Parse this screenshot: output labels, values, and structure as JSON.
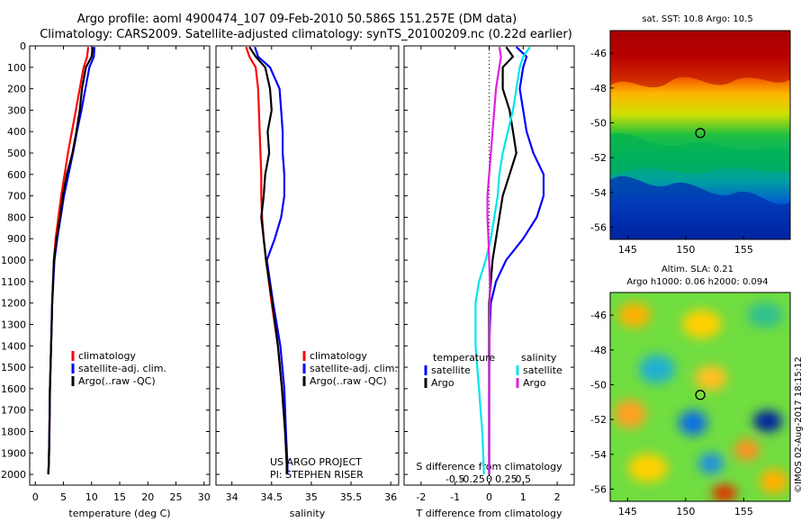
{
  "header": {
    "line1": "Argo profile: aoml 4900474_107 09-Feb-2010 50.586S 151.257E (DM data)",
    "line2": "Climatology: CARS2009. Satellite-adjusted climatology: synTS_20100209.nc (0.22d earlier)"
  },
  "colors": {
    "climatology": "#ff0000",
    "satellite": "#0000ff",
    "argo": "#000000",
    "t_sat": "#0000ff",
    "t_argo": "#000000",
    "s_sat": "#00e5ee",
    "s_argo": "#dd22dd"
  },
  "depth_ticks": [
    "0",
    "100",
    "200",
    "300",
    "400",
    "500",
    "600",
    "700",
    "800",
    "900",
    "1000",
    "1100",
    "1200",
    "1300",
    "1400",
    "1500",
    "1600",
    "1700",
    "1800",
    "1900",
    "2000"
  ],
  "chart_data": [
    {
      "type": "line",
      "name": "temperature",
      "xlabel": "temperature (deg C)",
      "xlim": [
        -1,
        31
      ],
      "ylim": [
        2050,
        0
      ],
      "xticks": [
        "0",
        "5",
        "10",
        "15",
        "20",
        "25",
        "30"
      ],
      "legend": [
        "climatology",
        "satellite-adj. clim.",
        "Argo(..raw -QC)"
      ],
      "series": [
        {
          "name": "climatology",
          "color": "#ff0000",
          "depth": [
            5,
            50,
            100,
            200,
            300,
            400,
            500,
            600,
            700,
            800,
            900,
            1000,
            1200,
            1400,
            1600,
            1800,
            1950,
            2000
          ],
          "values": [
            9.4,
            9.2,
            8.6,
            7.9,
            7.2,
            6.5,
            5.8,
            5.2,
            4.6,
            4.1,
            3.6,
            3.3,
            3.0,
            2.8,
            2.6,
            2.5,
            2.4,
            2.3
          ]
        },
        {
          "name": "satellite-adj. clim.",
          "color": "#0000ff",
          "depth": [
            5,
            50,
            100,
            200,
            300,
            400,
            500,
            600,
            700,
            800,
            900,
            1000,
            1200,
            1400,
            1600,
            1800,
            1950,
            2000
          ],
          "values": [
            10.5,
            10.4,
            9.6,
            8.9,
            8.2,
            7.4,
            6.7,
            5.9,
            5.1,
            4.5,
            3.9,
            3.4,
            3.0,
            2.8,
            2.6,
            2.5,
            2.4,
            2.3
          ]
        },
        {
          "name": "Argo(..raw -QC)",
          "color": "#000000",
          "depth": [
            5,
            50,
            100,
            200,
            300,
            400,
            500,
            600,
            700,
            800,
            900,
            1000,
            1200,
            1400,
            1600,
            1800,
            1950,
            2000
          ],
          "values": [
            10.2,
            10.0,
            9.0,
            8.3,
            7.9,
            7.3,
            6.6,
            5.6,
            4.9,
            4.4,
            3.8,
            3.3,
            3.0,
            2.8,
            2.6,
            2.5,
            2.4,
            2.3
          ]
        }
      ]
    },
    {
      "type": "line",
      "name": "salinity",
      "xlabel": "salinity",
      "xlim": [
        33.8,
        36.1
      ],
      "ylim": [
        2050,
        0
      ],
      "xticks": [
        "34",
        "34.5",
        "35",
        "35.5",
        "36"
      ],
      "legend": [
        "climatology",
        "satellite-adj. clim.",
        "Argo(..raw -QC)"
      ],
      "annotation": [
        "US ARGO PROJECT",
        "PI: STEPHEN RISER"
      ],
      "series": [
        {
          "name": "climatology",
          "color": "#ff0000",
          "depth": [
            5,
            50,
            100,
            200,
            300,
            400,
            500,
            600,
            700,
            800,
            900,
            1000,
            1200,
            1400,
            1600,
            1800,
            1950,
            2000
          ],
          "values": [
            34.18,
            34.22,
            34.3,
            34.33,
            34.34,
            34.35,
            34.36,
            34.37,
            34.37,
            34.38,
            34.4,
            34.43,
            34.5,
            34.58,
            34.63,
            34.67,
            34.69,
            34.7
          ]
        },
        {
          "name": "satellite-adj. clim.",
          "color": "#0000ff",
          "depth": [
            5,
            50,
            100,
            200,
            300,
            400,
            500,
            600,
            700,
            800,
            900,
            1000,
            1200,
            1400,
            1600,
            1800,
            1950,
            2000
          ],
          "values": [
            34.29,
            34.33,
            34.48,
            34.6,
            34.62,
            34.64,
            34.64,
            34.66,
            34.66,
            34.62,
            34.54,
            34.44,
            34.52,
            34.61,
            34.66,
            34.68,
            34.7,
            34.7
          ]
        },
        {
          "name": "Argo(..raw -QC)",
          "color": "#000000",
          "depth": [
            5,
            50,
            100,
            200,
            300,
            400,
            500,
            600,
            700,
            800,
            900,
            1000,
            1200,
            1400,
            1600,
            1800,
            1950,
            2000
          ],
          "values": [
            34.22,
            34.3,
            34.42,
            34.48,
            34.5,
            34.45,
            34.47,
            34.42,
            34.4,
            34.37,
            34.4,
            34.43,
            34.51,
            34.58,
            34.63,
            34.67,
            34.69,
            34.69
          ]
        }
      ]
    },
    {
      "type": "line",
      "name": "difference",
      "xlabel": "T difference from climatology",
      "xlabel_top": "S difference from climatology",
      "xlim": [
        -2.5,
        2.5
      ],
      "ylim": [
        2050,
        0
      ],
      "xticks": [
        "-2",
        "-1",
        "0",
        "1",
        "2"
      ],
      "xticks_s": [
        "-0.5",
        "-0.25",
        "0",
        "0.25",
        "0.5"
      ],
      "legend_headers": [
        "temperature",
        "salinity"
      ],
      "legend": [
        "satellite",
        "Argo",
        "satellite",
        "Argo"
      ],
      "series": [
        {
          "name": "satellite",
          "color": "#0000ff",
          "depth": [
            5,
            50,
            100,
            200,
            300,
            400,
            500,
            600,
            700,
            800,
            900,
            1000,
            1100,
            1200,
            1400,
            1600,
            1800,
            2000
          ],
          "values": [
            0.8,
            1.1,
            1.0,
            0.9,
            1.0,
            1.1,
            1.3,
            1.6,
            1.6,
            1.4,
            1.0,
            0.5,
            0.2,
            0.05,
            0.0,
            0.0,
            0.0,
            0.0
          ]
        },
        {
          "name": "Argo",
          "color": "#000000",
          "depth": [
            5,
            50,
            100,
            200,
            300,
            400,
            500,
            600,
            700,
            800,
            900,
            1000,
            1100,
            1200,
            1400,
            1600,
            1800,
            2000
          ],
          "values": [
            0.5,
            0.7,
            0.4,
            0.4,
            0.6,
            0.7,
            0.8,
            0.6,
            0.4,
            0.3,
            0.2,
            0.1,
            0.05,
            0.0,
            0.0,
            0.0,
            0.0,
            0.0
          ]
        },
        {
          "name": "satellite",
          "color": "#00e5ee",
          "depth": [
            5,
            50,
            100,
            200,
            300,
            400,
            500,
            600,
            700,
            800,
            900,
            1000,
            1100,
            1200,
            1400,
            1600,
            1800,
            2000
          ],
          "values": [
            1.2,
            1.0,
            0.9,
            0.8,
            0.7,
            0.55,
            0.4,
            0.3,
            0.25,
            0.15,
            0.05,
            -0.1,
            -0.3,
            -0.4,
            -0.4,
            -0.3,
            -0.2,
            -0.15
          ]
        },
        {
          "name": "Argo",
          "color": "#dd22dd",
          "depth": [
            5,
            50,
            100,
            200,
            300,
            400,
            500,
            600,
            700,
            800,
            900,
            1000,
            1100,
            1200,
            1400,
            1600,
            1800,
            2000
          ],
          "values": [
            0.3,
            0.35,
            0.3,
            0.2,
            0.15,
            0.1,
            0.05,
            0.0,
            -0.05,
            -0.05,
            -0.02,
            0.0,
            0.02,
            0.02,
            0.01,
            0.0,
            0.0,
            0.0
          ]
        }
      ]
    },
    {
      "type": "heatmap",
      "name": "sst_map",
      "title": "sat. SST: 10.8 Argo: 10.5",
      "xticks": [
        "145",
        "150",
        "155"
      ],
      "yticks": [
        "-46",
        "-48",
        "-50",
        "-52",
        "-54",
        "-56"
      ],
      "xlim": [
        143.5,
        159
      ],
      "ylim": [
        -56.7,
        -44.7
      ],
      "marker": {
        "lon": 151.257,
        "lat": -50.586
      }
    },
    {
      "type": "heatmap",
      "name": "sla_map",
      "title": "Altim. SLA: 0.21",
      "subtitle": "Argo h1000: 0.06 h2000: 0.094",
      "xticks": [
        "145",
        "150",
        "155"
      ],
      "yticks": [
        "-46",
        "-48",
        "-50",
        "-52",
        "-54",
        "-56"
      ],
      "xlim": [
        143.5,
        159
      ],
      "ylim": [
        -56.7,
        -44.7
      ],
      "marker": {
        "lon": 151.257,
        "lat": -50.586
      }
    }
  ],
  "credit": "©IMOS 02-Aug-2017 18:15:12"
}
